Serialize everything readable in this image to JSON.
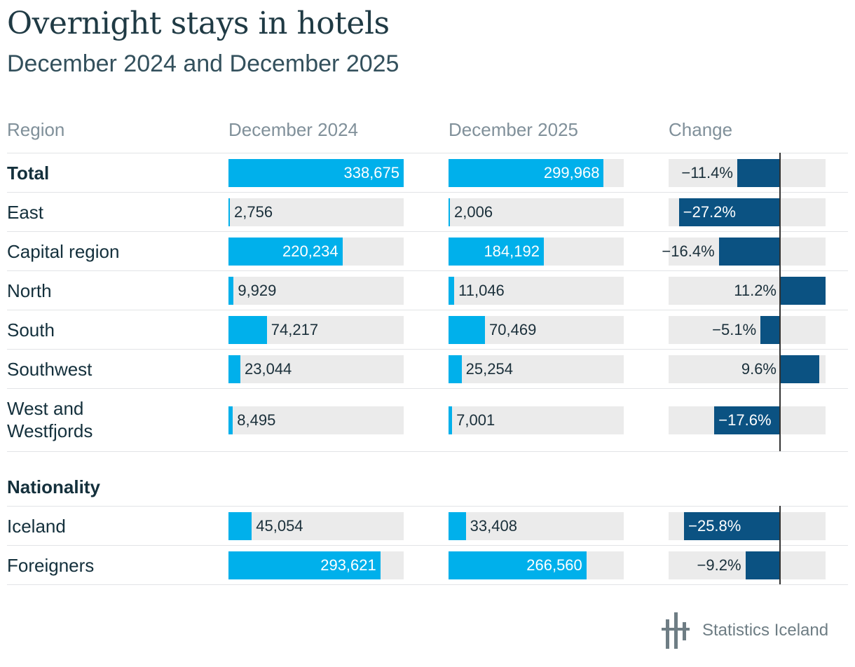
{
  "title": "Overnight stays in hotels",
  "subtitle": "December 2024 and December 2025",
  "headers": {
    "region": "Region",
    "dec2024": "December 2024",
    "dec2025": "December 2025",
    "change": "Change"
  },
  "section_nationality": "Nationality",
  "brand": "Statistics Iceland",
  "colors": {
    "bar": "#00b0eb",
    "change_bar": "#0b5282",
    "track": "#ebebeb"
  },
  "chart_data": {
    "type": "table",
    "title": "Overnight stays in hotels",
    "subtitle": "December 2024 and December 2025",
    "columns": [
      "Region",
      "December 2024",
      "December 2025",
      "Change"
    ],
    "value_max": 338675,
    "change_range": [
      -30,
      11.2
    ],
    "rows": [
      {
        "label": "Total",
        "bold": true,
        "dec2024": 338675,
        "dec2025": 299968,
        "change": -11.4,
        "dec2024_label": "338,675",
        "dec2025_label": "299,968",
        "change_label": "−11.4%"
      },
      {
        "label": "East",
        "bold": false,
        "dec2024": 2756,
        "dec2025": 2006,
        "change": -27.2,
        "dec2024_label": "2,756",
        "dec2025_label": "2,006",
        "change_label": "−27.2%"
      },
      {
        "label": "Capital region",
        "bold": false,
        "dec2024": 220234,
        "dec2025": 184192,
        "change": -16.4,
        "dec2024_label": "220,234",
        "dec2025_label": "184,192",
        "change_label": "−16.4%"
      },
      {
        "label": "North",
        "bold": false,
        "dec2024": 9929,
        "dec2025": 11046,
        "change": 11.2,
        "dec2024_label": "9,929",
        "dec2025_label": "11,046",
        "change_label": "11.2%"
      },
      {
        "label": "South",
        "bold": false,
        "dec2024": 74217,
        "dec2025": 70469,
        "change": -5.1,
        "dec2024_label": "74,217",
        "dec2025_label": "70,469",
        "change_label": "−5.1%"
      },
      {
        "label": "Southwest",
        "bold": false,
        "dec2024": 23044,
        "dec2025": 25254,
        "change": 9.6,
        "dec2024_label": "23,044",
        "dec2025_label": "25,254",
        "change_label": "9.6%"
      },
      {
        "label": "West and Westfjords",
        "label_lines": [
          "West and",
          "Westfjords"
        ],
        "bold": false,
        "dec2024": 8495,
        "dec2025": 7001,
        "change": -17.6,
        "dec2024_label": "8,495",
        "dec2025_label": "7,001",
        "change_label": "−17.6%"
      },
      {
        "label": "Iceland",
        "bold": false,
        "section": "Nationality",
        "dec2024": 45054,
        "dec2025": 33408,
        "change": -25.8,
        "dec2024_label": "45,054",
        "dec2025_label": "33,408",
        "change_label": "−25.8%"
      },
      {
        "label": "Foreigners",
        "bold": false,
        "section": "Nationality",
        "dec2024": 293621,
        "dec2025": 266560,
        "change": -9.2,
        "dec2024_label": "293,621",
        "dec2025_label": "266,560",
        "change_label": "−9.2%"
      }
    ]
  }
}
